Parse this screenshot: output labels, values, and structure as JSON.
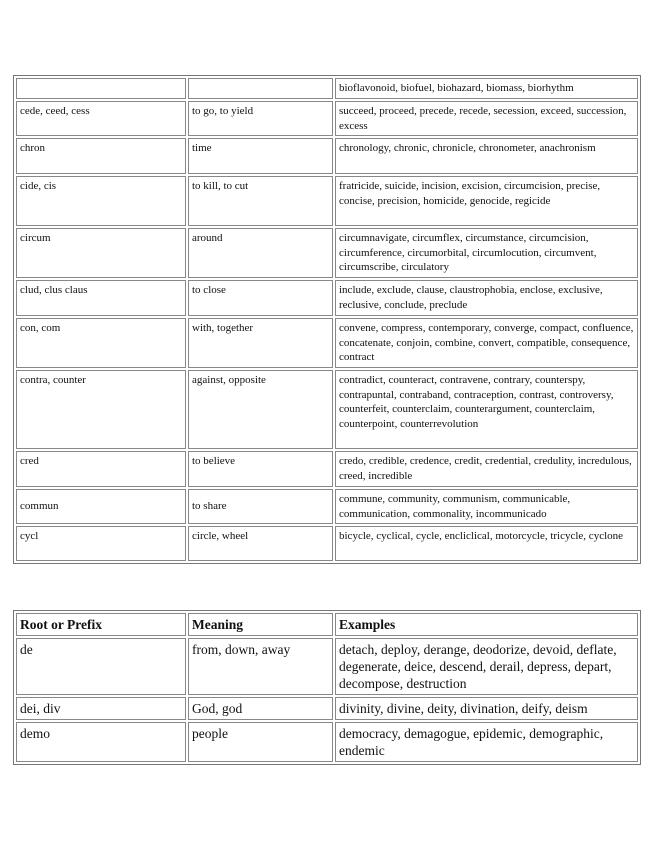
{
  "table1": {
    "rows": [
      {
        "root": "",
        "meaning": "",
        "examples": "bioflavonoid, biofuel, biohazard, biomass, biorhythm"
      },
      {
        "root": "cede, ceed, cess",
        "meaning": "to go, to yield",
        "examples": "succeed, proceed, precede, recede, secession, exceed, succession, excess"
      },
      {
        "root": "chron",
        "meaning": "time",
        "examples": "chronology, chronic, chronicle, chronometer, anachronism"
      },
      {
        "root": "cide, cis",
        "meaning": "to kill, to cut",
        "examples": "fratricide, suicide, incision, excision, circumcision, precise, concise, precision, homicide, genocide, regicide"
      },
      {
        "root": "circum",
        "meaning": "around",
        "examples": "circumnavigate, circumflex, circumstance, circumcision, circumference, circumorbital, circumlocution, circumvent, circumscribe, circulatory"
      },
      {
        "root": "clud, clus claus",
        "meaning": "to close",
        "examples": "include, exclude, clause, claustrophobia, enclose, exclusive, reclusive, conclude, preclude"
      },
      {
        "root": "con, com",
        "meaning": "with, together",
        "examples": "convene, compress, contemporary, converge, compact, confluence, concatenate, conjoin, combine, convert, compatible, consequence, contract"
      },
      {
        "root": "contra, counter",
        "meaning": "against, opposite",
        "examples": "contradict, counteract, contravene, contrary, counterspy, contrapuntal, contraband, contraception, contrast, controversy, counterfeit, counterclaim, counterargument, counterclaim, counterpoint, counterrevolution"
      },
      {
        "root": "cred",
        "meaning": "to believe",
        "examples": "credo, credible, credence, credit, credential, credulity, incredulous, creed, incredible"
      },
      {
        "root": "commun",
        "meaning": "to share",
        "examples": "commune, community, communism, communicable, communication, commonality, incommunicado"
      },
      {
        "root": "cycl",
        "meaning": "circle, wheel",
        "examples": "bicycle, cyclical, cycle, encliclical, motorcycle, tricycle, cyclone"
      }
    ]
  },
  "table2": {
    "headers": {
      "root": "Root or Prefix",
      "meaning": "Meaning",
      "examples": "Examples"
    },
    "rows": [
      {
        "root": "de",
        "meaning": "from, down, away",
        "examples": "detach, deploy, derange, deodorize, devoid, deflate, degenerate, deice, descend, derail, depress, depart, decompose, destruction"
      },
      {
        "root": "dei, div",
        "meaning": "God, god",
        "examples": "divinity, divine, deity, divination, deify, deism"
      },
      {
        "root": "demo",
        "meaning": "people",
        "examples": "democracy, demagogue, epidemic, demographic, endemic"
      }
    ]
  }
}
